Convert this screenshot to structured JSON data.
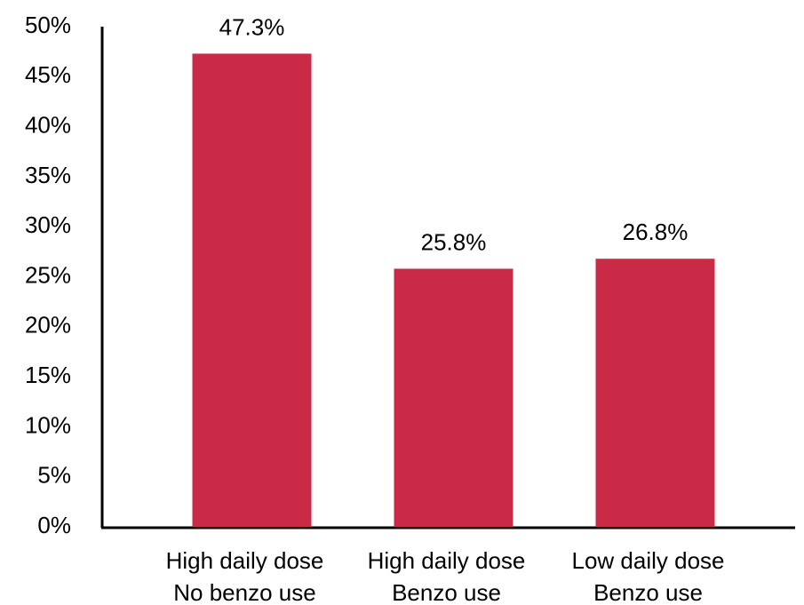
{
  "chart_data": {
    "type": "bar",
    "categories": [
      [
        "High daily dose",
        "No benzo use"
      ],
      [
        "High daily dose",
        "Benzo use"
      ],
      [
        "Low daily dose",
        "Benzo use"
      ]
    ],
    "values": [
      47.3,
      25.8,
      26.8
    ],
    "value_labels": [
      "47.3%",
      "25.8%",
      "26.8%"
    ],
    "color": "#c92a45",
    "ylim": [
      0,
      50
    ],
    "yticks": [
      {
        "value": 0,
        "label": "0%"
      },
      {
        "value": 5,
        "label": "5%"
      },
      {
        "value": 10,
        "label": "10%"
      },
      {
        "value": 15,
        "label": "15%"
      },
      {
        "value": 20,
        "label": "20%"
      },
      {
        "value": 25,
        "label": "25%"
      },
      {
        "value": 30,
        "label": "30%"
      },
      {
        "value": 35,
        "label": "35%"
      },
      {
        "value": 40,
        "label": "40%"
      },
      {
        "value": 45,
        "label": "45%"
      },
      {
        "value": 50,
        "label": "50%"
      }
    ],
    "grid": false
  }
}
